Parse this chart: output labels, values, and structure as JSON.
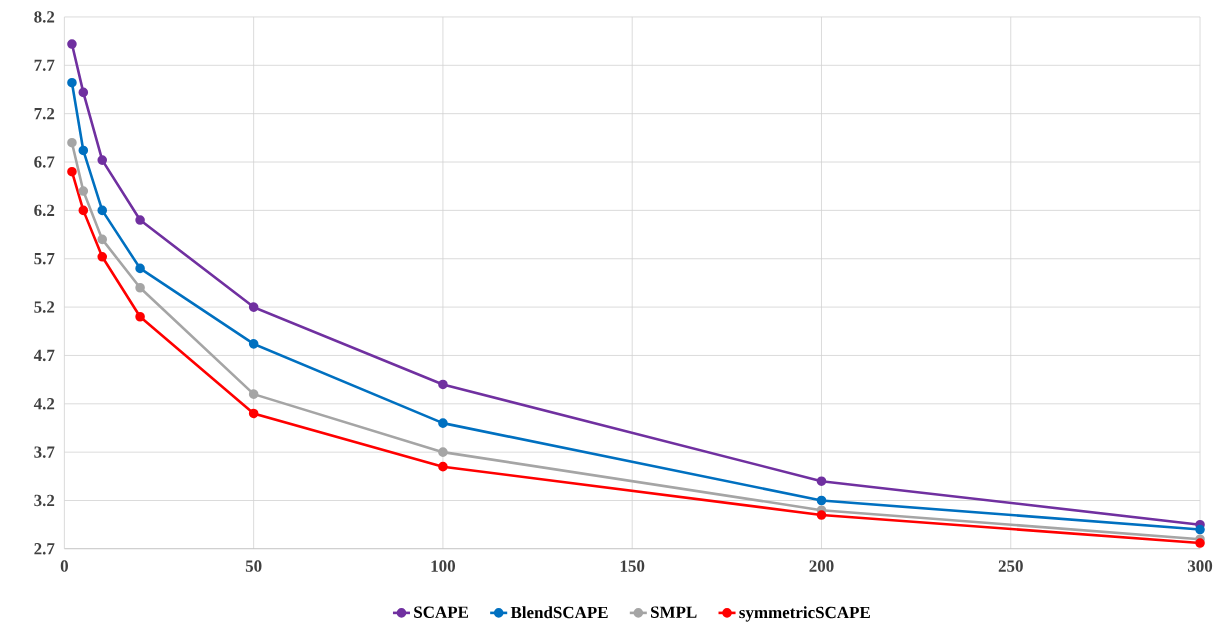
{
  "chart_data": {
    "type": "line",
    "x": [
      2,
      5,
      10,
      20,
      50,
      100,
      200,
      300
    ],
    "series": [
      {
        "name": "SCAPE",
        "color": "#7030a0",
        "values": [
          7.92,
          7.42,
          6.72,
          6.1,
          5.2,
          4.4,
          3.4,
          2.95
        ]
      },
      {
        "name": "BlendSCAPE",
        "color": "#0070c0",
        "values": [
          7.52,
          6.82,
          6.2,
          5.6,
          4.82,
          4.0,
          3.2,
          2.9
        ]
      },
      {
        "name": "SMPL",
        "color": "#a5a5a5",
        "values": [
          6.9,
          6.4,
          5.9,
          5.4,
          4.3,
          3.7,
          3.1,
          2.8
        ]
      },
      {
        "name": "symmetricSCAPE",
        "color": "#ff0000",
        "values": [
          6.6,
          6.2,
          5.72,
          5.1,
          4.1,
          3.55,
          3.05,
          2.76
        ]
      }
    ],
    "xlim": [
      0,
      300
    ],
    "xticks": [
      0,
      50,
      100,
      150,
      200,
      250,
      300
    ],
    "ylim": [
      2.7,
      8.2
    ],
    "yticks": [
      2.7,
      3.2,
      3.7,
      4.2,
      4.7,
      5.2,
      5.7,
      6.2,
      6.7,
      7.2,
      7.7,
      8.2
    ],
    "grid": true,
    "legend": "bottom",
    "marker": "circle",
    "line_style": "solid"
  }
}
